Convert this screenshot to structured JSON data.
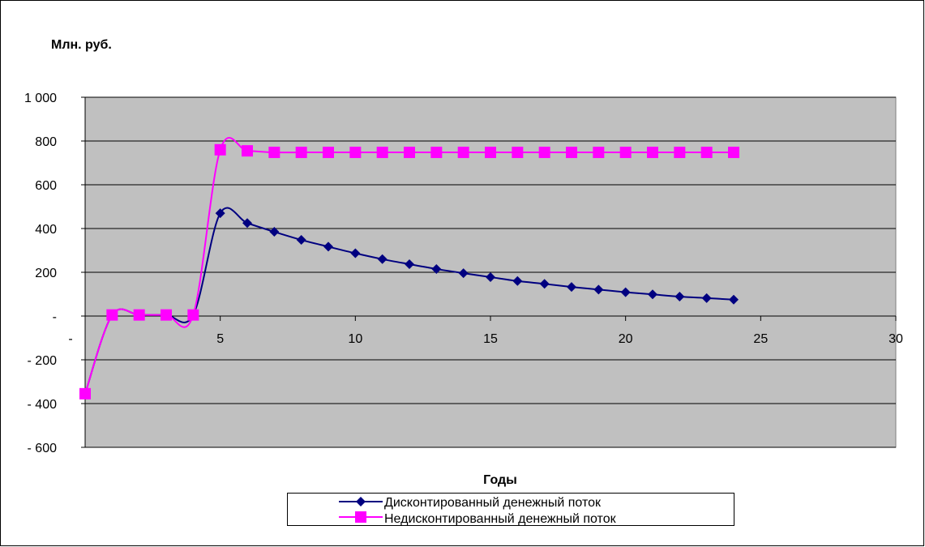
{
  "chart_data": {
    "type": "line",
    "title": "",
    "ylabel": "Млн. руб.",
    "xlabel": "Годы",
    "xlim": [
      0,
      30
    ],
    "ylim": [
      -600,
      1000
    ],
    "x_ticks": [
      0,
      5,
      10,
      15,
      20,
      25,
      30
    ],
    "x_tick_labels": [
      "-",
      "5",
      "10",
      "15",
      "20",
      "25",
      "30"
    ],
    "y_ticks": [
      1000,
      800,
      600,
      400,
      200,
      0,
      -200,
      -400,
      -600
    ],
    "y_tick_labels": [
      "1 000",
      "800",
      "600",
      "400",
      "200",
      "-",
      "- 200",
      "- 400",
      "- 600"
    ],
    "grid": true,
    "legend_position": "bottom-center",
    "plot_background": "#c0c0c0",
    "series": [
      {
        "name": "Дисконтированный денежный поток",
        "color": "#000080",
        "marker": "diamond",
        "x": [
          0.0,
          1.0,
          2.0,
          3.0,
          4.0,
          5.0,
          6.0,
          7.0,
          8.0,
          9.0,
          10.0,
          11.0,
          12.0,
          13.0,
          14.0,
          15.0,
          16.0,
          17.0,
          18.0,
          19.0,
          20.0,
          21.0,
          22.0,
          23.0,
          24.0
        ],
        "y": [
          -355,
          5,
          5,
          5,
          5,
          470,
          425,
          385,
          348,
          317,
          287,
          260,
          237,
          215,
          196,
          178,
          160,
          147,
          133,
          121,
          109,
          99,
          89,
          82,
          75
        ]
      },
      {
        "name": "Недисконтированный денежный поток",
        "color": "#ff00ff",
        "marker": "square",
        "x": [
          0.0,
          1.0,
          2.0,
          3.0,
          4.0,
          5.0,
          6.0,
          7.0,
          8.0,
          9.0,
          10.0,
          11.0,
          12.0,
          13.0,
          14.0,
          15.0,
          16.0,
          17.0,
          18.0,
          19.0,
          20.0,
          21.0,
          22.0,
          23.0,
          24.0
        ],
        "y": [
          -355,
          5,
          5,
          5,
          5,
          760,
          755,
          748,
          748,
          748,
          748,
          748,
          748,
          748,
          748,
          748,
          748,
          748,
          748,
          748,
          748,
          748,
          748,
          748,
          748
        ]
      }
    ]
  }
}
